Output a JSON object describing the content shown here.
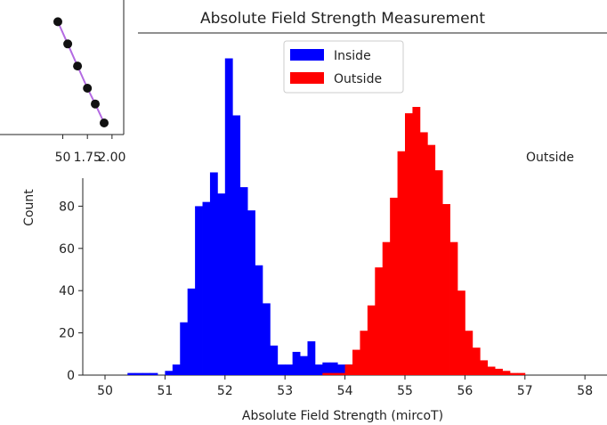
{
  "chart_data": [
    {
      "type": "bar",
      "title": "Absolute Field Strength Measurement",
      "xlabel": "Absolute Field Strength (mircoT)",
      "ylabel": "Count",
      "xlim": [
        49.6,
        58.4
      ],
      "ylim": [
        0,
        97
      ],
      "xticks": [
        "50",
        "51",
        "52",
        "53",
        "54",
        "55",
        "56",
        "57",
        "58"
      ],
      "yticks": [
        "0",
        "20",
        "40",
        "60",
        "80"
      ],
      "grid": false,
      "legend_position": "top-center",
      "annotation": "Outside",
      "bin_width": 0.125,
      "series": [
        {
          "name": "Inside",
          "color": "#0000ff",
          "bin_starts": [
            50.375,
            50.5,
            50.625,
            50.75,
            50.875,
            51.0,
            51.125,
            51.25,
            51.375,
            51.5,
            51.625,
            51.75,
            51.875,
            52.0,
            52.125,
            52.25,
            52.375,
            52.5,
            52.625,
            52.75,
            52.875,
            53.0,
            53.125,
            53.25,
            53.375,
            53.5,
            53.625,
            53.75,
            53.875,
            54.0
          ],
          "values": [
            1,
            1,
            1,
            1,
            0,
            2,
            5,
            25,
            41,
            80,
            82,
            96,
            86,
            150,
            123,
            89,
            78,
            52,
            34,
            14,
            5,
            5,
            11,
            9,
            16,
            5,
            6,
            6,
            5,
            5
          ]
        },
        {
          "name": "Outside",
          "color": "#ff0000",
          "bin_starts": [
            53.625,
            53.75,
            53.875,
            54.0,
            54.125,
            54.25,
            54.375,
            54.5,
            54.625,
            54.75,
            54.875,
            55.0,
            55.125,
            55.25,
            55.375,
            55.5,
            55.625,
            55.75,
            55.875,
            56.0,
            56.125,
            56.25,
            56.375,
            56.5,
            56.625,
            56.75,
            56.875
          ],
          "values": [
            1,
            1,
            1,
            5,
            12,
            21,
            33,
            51,
            63,
            84,
            106,
            124,
            127,
            115,
            109,
            97,
            81,
            63,
            40,
            21,
            13,
            7,
            4,
            3,
            2,
            1,
            1
          ]
        }
      ]
    },
    {
      "type": "line",
      "x": [
        1.45,
        1.55,
        1.65,
        1.75,
        1.83,
        1.92
      ],
      "values": [
        105,
        98,
        91,
        84,
        79,
        73
      ],
      "xticks": [
        "50",
        "1.75",
        "2.00"
      ],
      "line_color": "#b36ae2",
      "marker_color": "#111111"
    }
  ]
}
